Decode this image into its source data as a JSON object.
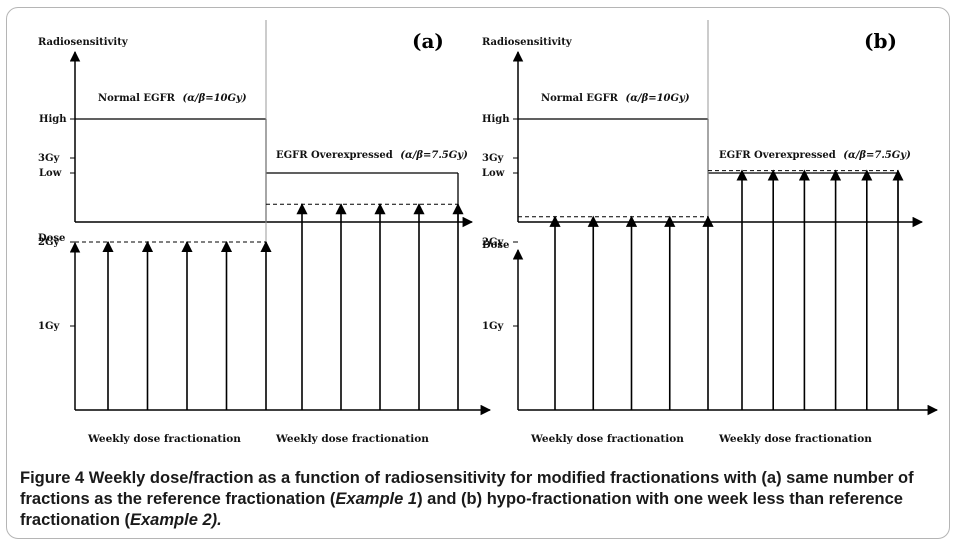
{
  "panels": [
    {
      "letter": "(a)",
      "radiosensitivity_label": "Radiosensitivity",
      "high_label": "High",
      "low_label": "Low",
      "normal_label": "Normal EGFR",
      "normal_ratio": "(α/β=10Gy)",
      "over_label": "EGFR Overexpressed",
      "over_ratio": "(α/β=7.5Gy)",
      "dose_label": "Dose",
      "dose_ticks": [
        "3Gy",
        "2Gy",
        "1Gy"
      ],
      "xlabel_left": "Weekly dose fractionation",
      "xlabel_right": "Weekly dose fractionation",
      "normal_dose_gy": 2.0,
      "over_dose_gy": 2.45,
      "normal_fractions": 5,
      "over_fractions": 5
    },
    {
      "letter": "(b)",
      "radiosensitivity_label": "Radiosensitivity",
      "high_label": "High",
      "low_label": "Low",
      "normal_label": "Normal EGFR",
      "normal_ratio": "(α/β=10Gy)",
      "over_label": "EGFR Overexpressed",
      "over_ratio": "(α/β=7.5Gy)",
      "dose_label": "Dose",
      "dose_ticks": [
        "3Gy",
        "2Gy",
        "1Gy"
      ],
      "xlabel_left": "Weekly dose fractionation",
      "xlabel_right": "Weekly dose fractionation",
      "normal_dose_gy": 2.3,
      "over_dose_gy": 2.85,
      "normal_fractions": 5,
      "over_fractions": 6
    }
  ],
  "caption": {
    "figure_label": "Figure 4",
    "part1": "Weekly dose/fraction as a function of radiosensitivity for modified fractionations with (a) same number of fractions as the reference fractionation (",
    "example1": "Example 1",
    "part2": ") and (b) hypo-fractionation with one week less than reference fractionation (",
    "example2": "Example 2).",
    "part3": ""
  }
}
